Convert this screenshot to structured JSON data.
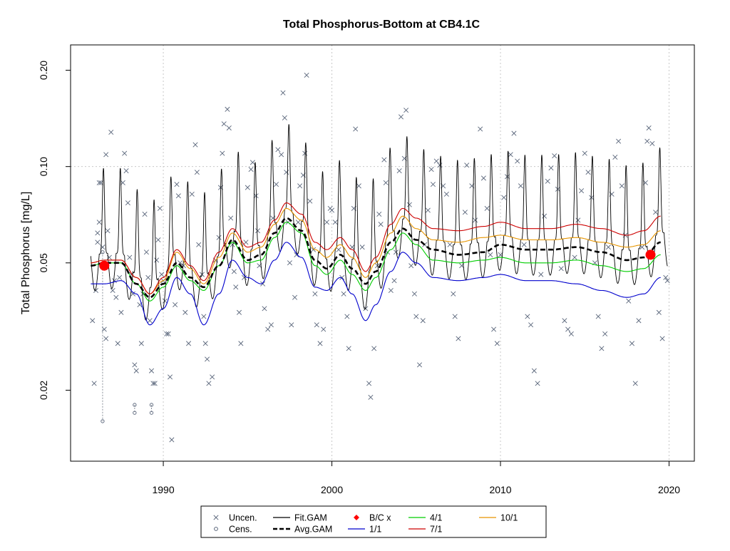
{
  "chart_data": {
    "type": "scatter",
    "title": "Total Phosphorus-Bottom at CB4.1C",
    "xlabel": "",
    "ylabel": "Total Phosphorus [mg/L]",
    "xlim": [
      1984.5,
      2021.5
    ],
    "ylim": [
      0.012,
      0.24
    ],
    "ylog": true,
    "grid": true,
    "x_ticks": [
      1990,
      2000,
      2010,
      2020
    ],
    "x_tick_labels": [
      "1990",
      "2000",
      "2010",
      "2020"
    ],
    "y_ticks": [
      0.02,
      0.05,
      0.1,
      0.2
    ],
    "y_tick_labels": [
      "0.02",
      "0.05",
      "0.10",
      "0.20"
    ],
    "reference_line_y": 0.1,
    "colors": {
      "points": "#59657a",
      "fit": "#000000",
      "avg": "#000000",
      "bc": "#ff0000",
      "s1_1": "#0000cd",
      "s4_1": "#00cd00",
      "s7_1": "#cd0000",
      "s10_1": "#e69500",
      "grid": "#c8c8c8",
      "ref": "#c8c8c8"
    },
    "legend": {
      "placement": "bottom",
      "entries": [
        {
          "label": "Uncen.",
          "symbol": "x",
          "color": "#59657a"
        },
        {
          "label": "Fit.GAM",
          "symbol": "line",
          "color": "#000000"
        },
        {
          "label": "B/C x",
          "symbol": "diamond",
          "color": "#ff0000"
        },
        {
          "label": "4/1",
          "symbol": "line",
          "color": "#00cd00"
        },
        {
          "label": "10/1",
          "symbol": "line",
          "color": "#e69500"
        },
        {
          "label": "Cens.",
          "symbol": "o",
          "color": "#59657a"
        },
        {
          "label": "Avg.GAM",
          "symbol": "dash",
          "color": "#000000"
        },
        {
          "label": "1/1",
          "symbol": "line",
          "color": "#0000cd"
        },
        {
          "label": "7/1",
          "symbol": "line",
          "color": "#cd0000"
        }
      ]
    },
    "series": [
      {
        "name": "Avg.GAM",
        "style": "dashed",
        "x": [
          1985.7,
          1986.5,
          1987.5,
          1988.4,
          1989.2,
          1990.0,
          1990.8,
          1991.6,
          1992.4,
          1993.3,
          1994.1,
          1995.0,
          1995.8,
          1996.6,
          1997.3,
          1998.2,
          1999.0,
          1999.7,
          2000.5,
          2001.2,
          2002.0,
          2002.6,
          2003.5,
          2004.2,
          2005.0,
          2006.0,
          2007.5,
          2009.0,
          2010.0,
          2011.5,
          2013.0,
          2014.5,
          2016.0,
          2017.5,
          2018.5,
          2019.5
        ],
        "y": [
          0.049,
          0.05,
          0.05,
          0.043,
          0.039,
          0.043,
          0.05,
          0.045,
          0.042,
          0.049,
          0.059,
          0.051,
          0.053,
          0.062,
          0.069,
          0.063,
          0.051,
          0.048,
          0.053,
          0.048,
          0.043,
          0.047,
          0.058,
          0.064,
          0.059,
          0.055,
          0.053,
          0.054,
          0.057,
          0.055,
          0.055,
          0.056,
          0.054,
          0.051,
          0.052,
          0.058
        ]
      },
      {
        "name": "1/1",
        "x": [
          1985.7,
          1986.5,
          1987.5,
          1988.4,
          1989.2,
          1990.0,
          1990.8,
          1991.6,
          1992.4,
          1993.3,
          1994.1,
          1995.0,
          1995.8,
          1996.6,
          1997.3,
          1998.2,
          1999.0,
          1999.7,
          2000.5,
          2001.2,
          2002.0,
          2002.6,
          2003.5,
          2004.2,
          2005.0,
          2006.0,
          2007.5,
          2009.0,
          2010.0,
          2011.5,
          2013.0,
          2014.5,
          2016.0,
          2017.5,
          2018.5,
          2019.5
        ],
        "y": [
          0.043,
          0.043,
          0.044,
          0.04,
          0.032,
          0.036,
          0.045,
          0.04,
          0.032,
          0.04,
          0.051,
          0.045,
          0.043,
          0.051,
          0.058,
          0.052,
          0.042,
          0.041,
          0.045,
          0.04,
          0.033,
          0.037,
          0.047,
          0.054,
          0.05,
          0.045,
          0.044,
          0.045,
          0.046,
          0.044,
          0.044,
          0.043,
          0.041,
          0.039,
          0.04,
          0.045
        ]
      },
      {
        "name": "4/1",
        "x": [
          1985.7,
          1986.5,
          1987.5,
          1988.4,
          1989.2,
          1990.0,
          1990.8,
          1991.6,
          1992.4,
          1993.3,
          1994.1,
          1995.0,
          1995.8,
          1996.6,
          1997.3,
          1998.2,
          1999.0,
          1999.7,
          2000.5,
          2001.2,
          2002.0,
          2002.6,
          2003.5,
          2004.2,
          2005.0,
          2006.0,
          2007.5,
          2009.0,
          2010.0,
          2011.5,
          2013.0,
          2014.5,
          2016.0,
          2017.5,
          2018.5,
          2019.5
        ],
        "y": [
          0.049,
          0.05,
          0.05,
          0.043,
          0.038,
          0.042,
          0.049,
          0.044,
          0.041,
          0.049,
          0.058,
          0.05,
          0.051,
          0.06,
          0.067,
          0.062,
          0.049,
          0.046,
          0.051,
          0.046,
          0.041,
          0.045,
          0.055,
          0.062,
          0.057,
          0.051,
          0.05,
          0.051,
          0.052,
          0.05,
          0.05,
          0.051,
          0.049,
          0.047,
          0.048,
          0.053
        ]
      },
      {
        "name": "7/1",
        "x": [
          1985.7,
          1986.5,
          1987.5,
          1988.4,
          1989.2,
          1990.0,
          1990.8,
          1991.6,
          1992.4,
          1993.3,
          1994.1,
          1995.0,
          1995.8,
          1996.6,
          1997.3,
          1998.2,
          1999.0,
          1999.7,
          2000.5,
          2001.2,
          2002.0,
          2002.6,
          2003.5,
          2004.2,
          2005.0,
          2006.0,
          2007.5,
          2009.0,
          2010.0,
          2011.5,
          2013.0,
          2014.5,
          2016.0,
          2017.5,
          2018.5,
          2019.5
        ],
        "y": [
          0.05,
          0.051,
          0.051,
          0.045,
          0.04,
          0.045,
          0.055,
          0.049,
          0.044,
          0.054,
          0.064,
          0.056,
          0.058,
          0.068,
          0.077,
          0.071,
          0.058,
          0.055,
          0.06,
          0.055,
          0.047,
          0.052,
          0.066,
          0.074,
          0.069,
          0.064,
          0.063,
          0.065,
          0.067,
          0.064,
          0.064,
          0.066,
          0.064,
          0.061,
          0.063,
          0.07
        ]
      },
      {
        "name": "10/1",
        "x": [
          1985.7,
          1986.5,
          1987.5,
          1988.4,
          1989.2,
          1990.0,
          1990.8,
          1991.6,
          1992.4,
          1993.3,
          1994.1,
          1995.0,
          1995.8,
          1996.6,
          1997.3,
          1998.2,
          1999.0,
          1999.7,
          2000.5,
          2001.2,
          2002.0,
          2002.6,
          2003.5,
          2004.2,
          2005.0,
          2006.0,
          2007.5,
          2009.0,
          2010.0,
          2011.5,
          2013.0,
          2014.5,
          2016.0,
          2017.5,
          2018.5,
          2019.5
        ],
        "y": [
          0.05,
          0.051,
          0.051,
          0.045,
          0.04,
          0.044,
          0.054,
          0.048,
          0.043,
          0.052,
          0.062,
          0.054,
          0.056,
          0.066,
          0.074,
          0.068,
          0.055,
          0.052,
          0.057,
          0.052,
          0.045,
          0.05,
          0.062,
          0.07,
          0.064,
          0.059,
          0.058,
          0.06,
          0.061,
          0.059,
          0.059,
          0.06,
          0.058,
          0.056,
          0.057,
          0.063
        ]
      }
    ],
    "bc_points": [
      {
        "x": 1986.5,
        "y": 0.049
      },
      {
        "x": 2018.9,
        "y": 0.053
      }
    ],
    "uncensored": [
      [
        1985.8,
        0.033
      ],
      [
        1985.9,
        0.021
      ],
      [
        1986.0,
        0.041
      ],
      [
        1986.1,
        0.058
      ],
      [
        1986.1,
        0.062
      ],
      [
        1986.2,
        0.067
      ],
      [
        1986.2,
        0.089
      ],
      [
        1986.3,
        0.089
      ],
      [
        1986.4,
        0.056
      ],
      [
        1986.5,
        0.031
      ],
      [
        1986.6,
        0.029
      ],
      [
        1986.6,
        0.109
      ],
      [
        1986.7,
        0.063
      ],
      [
        1986.8,
        0.052
      ],
      [
        1986.9,
        0.128
      ],
      [
        1987.0,
        0.041
      ],
      [
        1987.1,
        0.044
      ],
      [
        1987.2,
        0.039
      ],
      [
        1987.3,
        0.028
      ],
      [
        1987.4,
        0.045
      ],
      [
        1987.5,
        0.035
      ],
      [
        1987.6,
        0.089
      ],
      [
        1987.7,
        0.11
      ],
      [
        1987.8,
        0.097
      ],
      [
        1987.9,
        0.077
      ],
      [
        1988.0,
        0.052
      ],
      [
        1988.1,
        0.046
      ],
      [
        1988.2,
        0.04
      ],
      [
        1988.3,
        0.024
      ],
      [
        1988.4,
        0.023
      ],
      [
        1988.6,
        0.037
      ],
      [
        1988.7,
        0.028
      ],
      [
        1988.8,
        0.04
      ],
      [
        1988.9,
        0.071
      ],
      [
        1989.0,
        0.054
      ],
      [
        1989.1,
        0.045
      ],
      [
        1989.2,
        0.033
      ],
      [
        1989.3,
        0.023
      ],
      [
        1989.4,
        0.021
      ],
      [
        1989.5,
        0.021
      ],
      [
        1989.6,
        0.051
      ],
      [
        1989.7,
        0.059
      ],
      [
        1989.8,
        0.074
      ],
      [
        1989.9,
        0.046
      ],
      [
        1990.0,
        0.044
      ],
      [
        1990.1,
        0.038
      ],
      [
        1990.2,
        0.03
      ],
      [
        1990.3,
        0.03
      ],
      [
        1990.4,
        0.022
      ],
      [
        1990.5,
        0.014
      ],
      [
        1990.7,
        0.037
      ],
      [
        1990.8,
        0.088
      ],
      [
        1990.9,
        0.081
      ],
      [
        1991.0,
        0.05
      ],
      [
        1991.2,
        0.049
      ],
      [
        1991.3,
        0.035
      ],
      [
        1991.5,
        0.028
      ],
      [
        1991.7,
        0.082
      ],
      [
        1991.9,
        0.117
      ],
      [
        1992.0,
        0.096
      ],
      [
        1992.1,
        0.057
      ],
      [
        1992.3,
        0.046
      ],
      [
        1992.4,
        0.034
      ],
      [
        1992.5,
        0.028
      ],
      [
        1992.6,
        0.025
      ],
      [
        1992.7,
        0.021
      ],
      [
        1992.9,
        0.022
      ],
      [
        1993.1,
        0.051
      ],
      [
        1993.3,
        0.06
      ],
      [
        1993.4,
        0.086
      ],
      [
        1993.5,
        0.11
      ],
      [
        1993.6,
        0.136
      ],
      [
        1993.8,
        0.151
      ],
      [
        1993.9,
        0.132
      ],
      [
        1994.0,
        0.069
      ],
      [
        1994.1,
        0.057
      ],
      [
        1994.2,
        0.047
      ],
      [
        1994.3,
        0.042
      ],
      [
        1994.5,
        0.035
      ],
      [
        1994.6,
        0.028
      ],
      [
        1994.8,
        0.045
      ],
      [
        1994.9,
        0.058
      ],
      [
        1995.0,
        0.086
      ],
      [
        1995.2,
        0.098
      ],
      [
        1995.3,
        0.103
      ],
      [
        1995.5,
        0.081
      ],
      [
        1995.6,
        0.063
      ],
      [
        1995.7,
        0.049
      ],
      [
        1995.9,
        0.043
      ],
      [
        1996.0,
        0.036
      ],
      [
        1996.2,
        0.031
      ],
      [
        1996.4,
        0.032
      ],
      [
        1996.5,
        0.069
      ],
      [
        1996.7,
        0.088
      ],
      [
        1996.8,
        0.113
      ],
      [
        1997.0,
        0.109
      ],
      [
        1997.1,
        0.17
      ],
      [
        1997.2,
        0.142
      ],
      [
        1997.3,
        0.096
      ],
      [
        1997.4,
        0.067
      ],
      [
        1997.5,
        0.05
      ],
      [
        1997.6,
        0.032
      ],
      [
        1997.8,
        0.039
      ],
      [
        1997.9,
        0.053
      ],
      [
        1998.0,
        0.067
      ],
      [
        1998.1,
        0.087
      ],
      [
        1998.3,
        0.094
      ],
      [
        1998.4,
        0.11
      ],
      [
        1998.5,
        0.193
      ],
      [
        1998.7,
        0.078
      ],
      [
        1998.9,
        0.055
      ],
      [
        1999.0,
        0.04
      ],
      [
        1999.1,
        0.032
      ],
      [
        1999.3,
        0.028
      ],
      [
        1999.5,
        0.031
      ],
      [
        1999.7,
        0.067
      ],
      [
        1999.9,
        0.074
      ],
      [
        2000.0,
        0.073
      ],
      [
        2000.2,
        0.067
      ],
      [
        2000.4,
        0.055
      ],
      [
        2000.6,
        0.045
      ],
      [
        2000.7,
        0.04
      ],
      [
        2000.9,
        0.034
      ],
      [
        2001.0,
        0.027
      ],
      [
        2001.2,
        0.056
      ],
      [
        2001.3,
        0.074
      ],
      [
        2001.4,
        0.131
      ],
      [
        2001.6,
        0.087
      ],
      [
        2001.8,
        0.056
      ],
      [
        2002.0,
        0.036
      ],
      [
        2002.2,
        0.021
      ],
      [
        2002.3,
        0.019
      ],
      [
        2002.5,
        0.027
      ],
      [
        2002.7,
        0.049
      ],
      [
        2002.8,
        0.071
      ],
      [
        2002.9,
        0.066
      ],
      [
        2003.1,
        0.105
      ],
      [
        2003.2,
        0.089
      ],
      [
        2003.3,
        0.054
      ],
      [
        2003.5,
        0.041
      ],
      [
        2003.7,
        0.044
      ],
      [
        2003.8,
        0.054
      ],
      [
        2004.0,
        0.097
      ],
      [
        2004.1,
        0.143
      ],
      [
        2004.3,
        0.106
      ],
      [
        2004.4,
        0.15
      ],
      [
        2004.6,
        0.076
      ],
      [
        2004.7,
        0.049
      ],
      [
        2004.9,
        0.04
      ],
      [
        2005.0,
        0.034
      ],
      [
        2005.2,
        0.024
      ],
      [
        2005.4,
        0.033
      ],
      [
        2005.5,
        0.057
      ],
      [
        2005.7,
        0.073
      ],
      [
        2005.9,
        0.098
      ],
      [
        2006.0,
        0.088
      ],
      [
        2006.2,
        0.104
      ],
      [
        2006.4,
        0.101
      ],
      [
        2006.6,
        0.087
      ],
      [
        2006.8,
        0.082
      ],
      [
        2007.0,
        0.057
      ],
      [
        2007.2,
        0.04
      ],
      [
        2007.3,
        0.034
      ],
      [
        2007.5,
        0.029
      ],
      [
        2007.7,
        0.049
      ],
      [
        2007.9,
        0.072
      ],
      [
        2008.0,
        0.101
      ],
      [
        2008.3,
        0.087
      ],
      [
        2008.5,
        0.068
      ],
      [
        2008.8,
        0.131
      ],
      [
        2009.0,
        0.092
      ],
      [
        2009.2,
        0.074
      ],
      [
        2009.4,
        0.053
      ],
      [
        2009.6,
        0.031
      ],
      [
        2009.8,
        0.028
      ],
      [
        2010.0,
        0.053
      ],
      [
        2010.2,
        0.08
      ],
      [
        2010.4,
        0.093
      ],
      [
        2010.6,
        0.109
      ],
      [
        2010.8,
        0.127
      ],
      [
        2011.0,
        0.104
      ],
      [
        2011.2,
        0.087
      ],
      [
        2011.4,
        0.057
      ],
      [
        2011.6,
        0.034
      ],
      [
        2011.8,
        0.032
      ],
      [
        2012.0,
        0.023
      ],
      [
        2012.2,
        0.021
      ],
      [
        2012.4,
        0.046
      ],
      [
        2012.6,
        0.07
      ],
      [
        2012.8,
        0.09
      ],
      [
        2013.0,
        0.099
      ],
      [
        2013.2,
        0.108
      ],
      [
        2013.4,
        0.085
      ],
      [
        2013.6,
        0.048
      ],
      [
        2013.8,
        0.033
      ],
      [
        2014.0,
        0.031
      ],
      [
        2014.2,
        0.03
      ],
      [
        2014.4,
        0.052
      ],
      [
        2014.6,
        0.068
      ],
      [
        2014.8,
        0.084
      ],
      [
        2015.0,
        0.11
      ],
      [
        2015.2,
        0.096
      ],
      [
        2015.4,
        0.08
      ],
      [
        2015.6,
        0.05
      ],
      [
        2015.8,
        0.034
      ],
      [
        2016.0,
        0.027
      ],
      [
        2016.2,
        0.03
      ],
      [
        2016.4,
        0.056
      ],
      [
        2016.6,
        0.082
      ],
      [
        2016.8,
        0.107
      ],
      [
        2017.0,
        0.12
      ],
      [
        2017.2,
        0.087
      ],
      [
        2017.4,
        0.061
      ],
      [
        2017.6,
        0.038
      ],
      [
        2017.8,
        0.028
      ],
      [
        2018.0,
        0.021
      ],
      [
        2018.2,
        0.033
      ],
      [
        2018.4,
        0.056
      ],
      [
        2018.6,
        0.089
      ],
      [
        2018.7,
        0.12
      ],
      [
        2018.8,
        0.132
      ],
      [
        2019.0,
        0.118
      ],
      [
        2019.2,
        0.072
      ],
      [
        2019.4,
        0.035
      ],
      [
        2019.6,
        0.029
      ],
      [
        2019.8,
        0.045
      ],
      [
        2019.9,
        0.044
      ]
    ],
    "censored": [
      {
        "x": 1986.4,
        "lo": 0.016,
        "hi": 0.054
      },
      {
        "x": 1988.3,
        "lo": 0.017,
        "hi": 0.018
      },
      {
        "x": 1989.3,
        "lo": 0.017,
        "hi": 0.018
      }
    ]
  }
}
